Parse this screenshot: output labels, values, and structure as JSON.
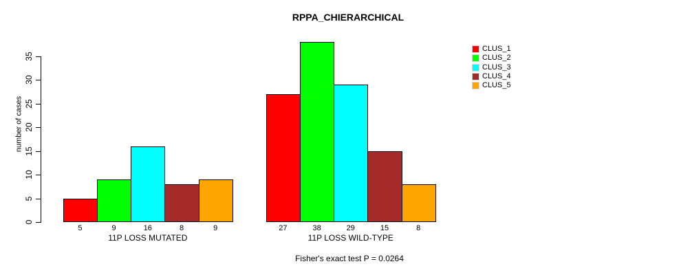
{
  "chart_data": {
    "type": "bar",
    "title": "RPPA_CHIERARCHICAL",
    "ylabel": "number of cases",
    "xlabel": "",
    "caption": "Fisher's exact test P = 0.0264",
    "yticks": [
      0,
      5,
      10,
      15,
      20,
      25,
      30,
      35
    ],
    "ylim": [
      0,
      38
    ],
    "grid": false,
    "bar_value_labels_shown": true,
    "categories": [
      "11P LOSS MUTATED",
      "11P LOSS WILD-TYPE"
    ],
    "series": [
      {
        "name": "CLUS_1",
        "color": "#ff0000",
        "values": [
          5,
          27
        ]
      },
      {
        "name": "CLUS_2",
        "color": "#00ff00",
        "values": [
          9,
          38
        ]
      },
      {
        "name": "CLUS_3",
        "color": "#00ffff",
        "values": [
          16,
          29
        ]
      },
      {
        "name": "CLUS_4",
        "color": "#a52a2a",
        "values": [
          8,
          15
        ]
      },
      {
        "name": "CLUS_5",
        "color": "#ffa500",
        "values": [
          9,
          8
        ]
      }
    ],
    "legend": {
      "position": "right",
      "entries": [
        {
          "label": "CLUS_1",
          "color": "#ff0000"
        },
        {
          "label": "CLUS_2",
          "color": "#00ff00"
        },
        {
          "label": "CLUS_3",
          "color": "#00ffff"
        },
        {
          "label": "CLUS_4",
          "color": "#a52a2a"
        },
        {
          "label": "CLUS_5",
          "color": "#ffa500"
        }
      ]
    }
  }
}
